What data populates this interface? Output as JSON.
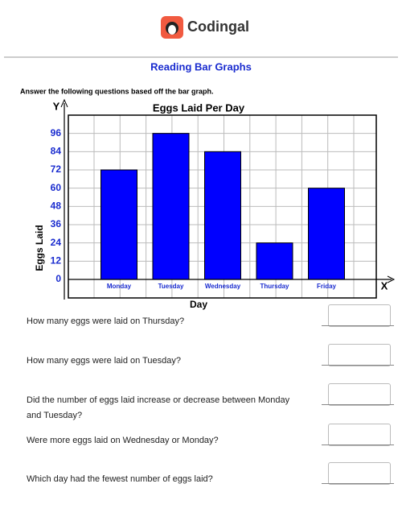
{
  "header": {
    "brand": "Codingal"
  },
  "title": "Reading Bar Graphs",
  "instructions": "Answer the following questions based off the bar graph.",
  "chart_data": {
    "type": "bar",
    "title": "Eggs Laid Per Day",
    "x_label": "Day",
    "y_label": "Eggs Laid",
    "x_axis_letter": "X",
    "y_axis_letter": "Y",
    "categories": [
      "Monday",
      "Tuesday",
      "Wednesday",
      "Thursday",
      "Friday"
    ],
    "values": [
      72,
      96,
      84,
      24,
      60
    ],
    "color": "#0000ff",
    "ylim": [
      0,
      108
    ],
    "yticks": [
      0,
      12,
      24,
      36,
      48,
      60,
      72,
      84,
      96
    ],
    "grid": true
  },
  "questions": [
    "How many eggs were laid on Thursday?",
    "How many eggs were laid on Tuesday?",
    "Did the number of eggs laid increase or decrease between Monday and Tuesday?",
    "Were more eggs laid on Wednesday or Monday?",
    "Which day had the fewest number of eggs laid?"
  ]
}
